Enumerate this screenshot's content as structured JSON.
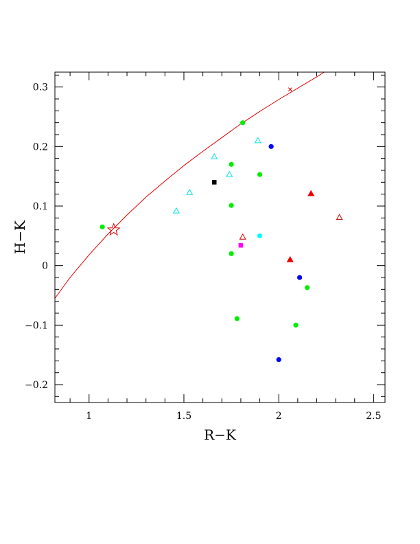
{
  "chart_data": {
    "type": "scatter",
    "title": "",
    "xlabel": "R−K",
    "ylabel": "H−K",
    "xlim": [
      0.82,
      2.56
    ],
    "ylim": [
      -0.23,
      0.325
    ],
    "grid": false,
    "legend": "none",
    "x_ticks": {
      "major": [
        1,
        1.5,
        2,
        2.5
      ],
      "labels": [
        "1",
        "1.5",
        "2",
        "2.5"
      ],
      "minor_step": 0.1
    },
    "y_ticks": {
      "major": [
        -0.2,
        -0.1,
        0,
        0.1,
        0.2,
        0.3
      ],
      "labels": [
        "−0.2",
        "−0.1",
        "0",
        "0.1",
        "0.2",
        "0.3"
      ],
      "minor_step": 0.02
    },
    "curve": {
      "color": "#e00000",
      "x": [
        0.82,
        0.9,
        1.0,
        1.1,
        1.2,
        1.3,
        1.4,
        1.5,
        1.6,
        1.7,
        1.8,
        1.9,
        2.0,
        2.1,
        2.2,
        2.24
      ],
      "y": [
        -0.055,
        -0.02,
        0.018,
        0.053,
        0.085,
        0.115,
        0.142,
        0.168,
        0.192,
        0.215,
        0.238,
        0.259,
        0.279,
        0.298,
        0.317,
        0.325
      ]
    },
    "star_marker": {
      "x": 1.13,
      "y": 0.06,
      "color": "#e00000",
      "shape": "open-star"
    },
    "series": [
      {
        "shape": "filled-circle",
        "color": "#00ee00",
        "points": [
          [
            1.07,
            0.065
          ],
          [
            1.81,
            0.24
          ],
          [
            1.75,
            0.17
          ],
          [
            1.9,
            0.153
          ],
          [
            1.75,
            0.101
          ],
          [
            1.75,
            0.02
          ],
          [
            2.15,
            -0.037
          ],
          [
            1.78,
            -0.089
          ],
          [
            2.09,
            -0.1
          ]
        ]
      },
      {
        "shape": "filled-circle",
        "color": "#0000ff",
        "points": [
          [
            1.96,
            0.2
          ],
          [
            2.11,
            -0.02
          ],
          [
            2.0,
            -0.158
          ]
        ]
      },
      {
        "shape": "filled-circle",
        "color": "#00ffff",
        "points": [
          [
            1.9,
            0.05
          ]
        ]
      },
      {
        "shape": "open-triangle",
        "color": "#00e5e5",
        "points": [
          [
            1.46,
            0.092
          ],
          [
            1.53,
            0.123
          ],
          [
            1.66,
            0.183
          ],
          [
            1.74,
            0.153
          ],
          [
            1.89,
            0.21
          ]
        ]
      },
      {
        "shape": "filled-triangle",
        "color": "#ee0000",
        "points": [
          [
            2.17,
            0.121
          ],
          [
            2.06,
            0.01
          ]
        ]
      },
      {
        "shape": "open-triangle",
        "color": "#cc0000",
        "points": [
          [
            1.81,
            0.048
          ],
          [
            2.32,
            0.081
          ]
        ]
      },
      {
        "shape": "filled-square",
        "color": "#000000",
        "points": [
          [
            1.66,
            0.14
          ]
        ]
      },
      {
        "shape": "filled-square",
        "color": "#ff00ff",
        "points": [
          [
            1.8,
            0.034
          ]
        ]
      },
      {
        "shape": "cross",
        "color": "#cc0000",
        "points": [
          [
            2.06,
            0.296
          ]
        ]
      }
    ]
  }
}
